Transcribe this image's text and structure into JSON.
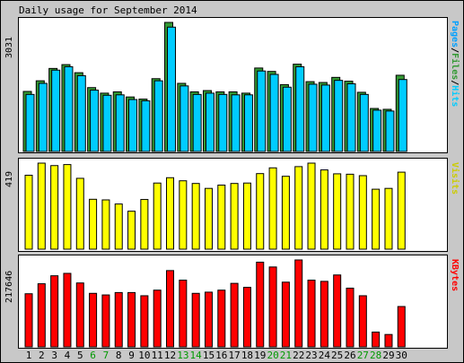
{
  "title": "Daily usage for September 2014",
  "colors": {
    "hits": "#00ccff",
    "files": "#339933",
    "pages": "#00a0ff",
    "visits": "#ffff00",
    "kbytes": "#ff0000",
    "weekday_label": "#000000",
    "weekend_label": "#009900"
  },
  "legends": {
    "pages_panel": [
      "Pages",
      "Files",
      "Hits"
    ],
    "visits_panel": "Visits",
    "kbytes_panel": "KBytes"
  },
  "chart_data": [
    {
      "type": "bar",
      "name": "hits-files-pages",
      "max_label": "3031",
      "ylim": [
        0,
        3031
      ],
      "categories": [
        "1",
        "2",
        "3",
        "4",
        "5",
        "6",
        "7",
        "8",
        "9",
        "10",
        "11",
        "12",
        "13",
        "14",
        "15",
        "16",
        "17",
        "18",
        "19",
        "20",
        "21",
        "22",
        "23",
        "24",
        "25",
        "26",
        "27",
        "28",
        "29",
        "30"
      ],
      "series": [
        {
          "name": "Files",
          "values": [
            1410,
            1660,
            1950,
            2040,
            1850,
            1500,
            1370,
            1400,
            1280,
            1230,
            1710,
            3031,
            1600,
            1400,
            1430,
            1400,
            1400,
            1370,
            1960,
            1880,
            1570,
            2050,
            1640,
            1620,
            1740,
            1650,
            1390,
            1010,
            990,
            1790
          ]
        },
        {
          "name": "Hits",
          "values": [
            1340,
            1600,
            1910,
            1990,
            1780,
            1440,
            1320,
            1330,
            1220,
            1190,
            1660,
            2920,
            1540,
            1340,
            1370,
            1340,
            1330,
            1330,
            1890,
            1810,
            1510,
            1990,
            1580,
            1560,
            1670,
            1590,
            1340,
            970,
            950,
            1690
          ]
        }
      ]
    },
    {
      "type": "bar",
      "name": "visits",
      "max_label": "419",
      "ylim": [
        0,
        419
      ],
      "categories": [
        "1",
        "2",
        "3",
        "4",
        "5",
        "6",
        "7",
        "8",
        "9",
        "10",
        "11",
        "12",
        "13",
        "14",
        "15",
        "16",
        "17",
        "18",
        "19",
        "20",
        "21",
        "22",
        "23",
        "24",
        "25",
        "26",
        "27",
        "28",
        "29",
        "30"
      ],
      "series": [
        {
          "name": "Visits",
          "values": [
            360,
            419,
            407,
            412,
            345,
            243,
            240,
            220,
            185,
            242,
            322,
            348,
            333,
            320,
            296,
            312,
            320,
            322,
            368,
            396,
            355,
            402,
            419,
            386,
            367,
            365,
            358,
            292,
            296,
            375
          ]
        }
      ]
    },
    {
      "type": "bar",
      "name": "kbytes",
      "max_label": "217646",
      "ylim": [
        0,
        217646
      ],
      "categories": [
        "1",
        "2",
        "3",
        "4",
        "5",
        "6",
        "7",
        "8",
        "9",
        "10",
        "11",
        "12",
        "13",
        "14",
        "15",
        "16",
        "17",
        "18",
        "19",
        "20",
        "21",
        "22",
        "23",
        "24",
        "25",
        "26",
        "27",
        "28",
        "29",
        "30"
      ],
      "series": [
        {
          "name": "KBytes",
          "values": [
            133000,
            158000,
            178000,
            184000,
            160000,
            134000,
            130000,
            136000,
            136000,
            128000,
            142000,
            191000,
            167000,
            134000,
            137000,
            142000,
            159000,
            149000,
            212000,
            200000,
            162000,
            217646,
            167000,
            164000,
            180000,
            147000,
            128000,
            37000,
            31000,
            101000
          ]
        }
      ]
    }
  ],
  "days": [
    {
      "label": "1",
      "weekend": false
    },
    {
      "label": "2",
      "weekend": false
    },
    {
      "label": "3",
      "weekend": false
    },
    {
      "label": "4",
      "weekend": false
    },
    {
      "label": "5",
      "weekend": false
    },
    {
      "label": "6",
      "weekend": true
    },
    {
      "label": "7",
      "weekend": true
    },
    {
      "label": "8",
      "weekend": false
    },
    {
      "label": "9",
      "weekend": false
    },
    {
      "label": "10",
      "weekend": false
    },
    {
      "label": "11",
      "weekend": false
    },
    {
      "label": "12",
      "weekend": false
    },
    {
      "label": "13",
      "weekend": true
    },
    {
      "label": "14",
      "weekend": true
    },
    {
      "label": "15",
      "weekend": false
    },
    {
      "label": "16",
      "weekend": false
    },
    {
      "label": "17",
      "weekend": false
    },
    {
      "label": "18",
      "weekend": false
    },
    {
      "label": "19",
      "weekend": false
    },
    {
      "label": "20",
      "weekend": true
    },
    {
      "label": "21",
      "weekend": true
    },
    {
      "label": "22",
      "weekend": false
    },
    {
      "label": "23",
      "weekend": false
    },
    {
      "label": "24",
      "weekend": false
    },
    {
      "label": "25",
      "weekend": false
    },
    {
      "label": "26",
      "weekend": false
    },
    {
      "label": "27",
      "weekend": true
    },
    {
      "label": "28",
      "weekend": true
    },
    {
      "label": "29",
      "weekend": false
    },
    {
      "label": "30",
      "weekend": false
    }
  ]
}
